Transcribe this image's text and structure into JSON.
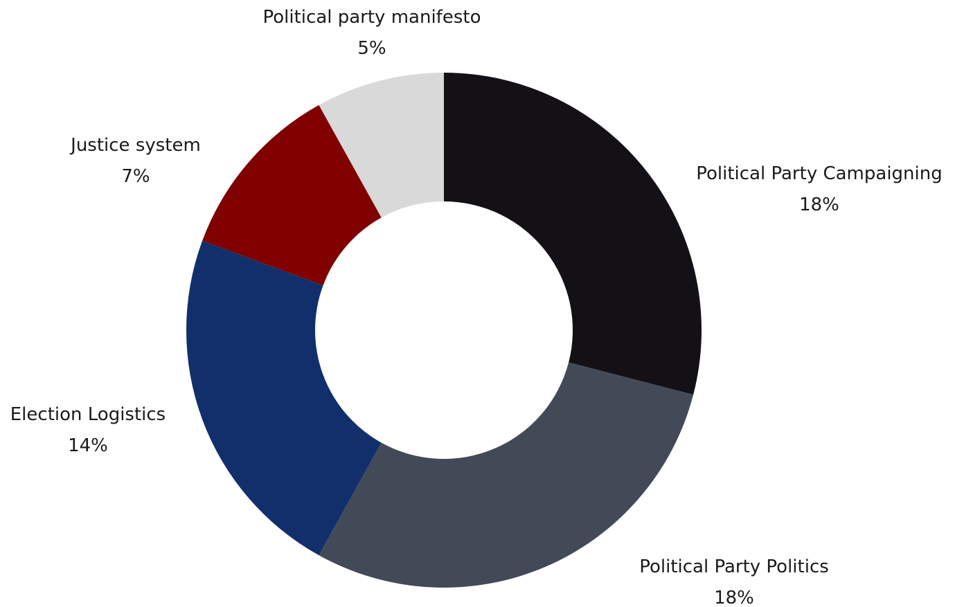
{
  "chart_data": {
    "type": "pie",
    "variant": "donut",
    "title": "",
    "legend": "none",
    "slices": [
      {
        "label": "Political Party Campaigning",
        "value": 18,
        "display": "18%",
        "color": "#141116"
      },
      {
        "label": "Political Party Politics",
        "value": 18,
        "display": "18%",
        "color": "#434a57"
      },
      {
        "label": "Election Logistics",
        "value": 14,
        "display": "14%",
        "color": "#11306b"
      },
      {
        "label": "Justice system",
        "value": 7,
        "display": "7%",
        "color": "#800000"
      },
      {
        "label": "Political party manifesto",
        "value": 5,
        "display": "5%",
        "color": "#d9d9d9"
      }
    ]
  }
}
